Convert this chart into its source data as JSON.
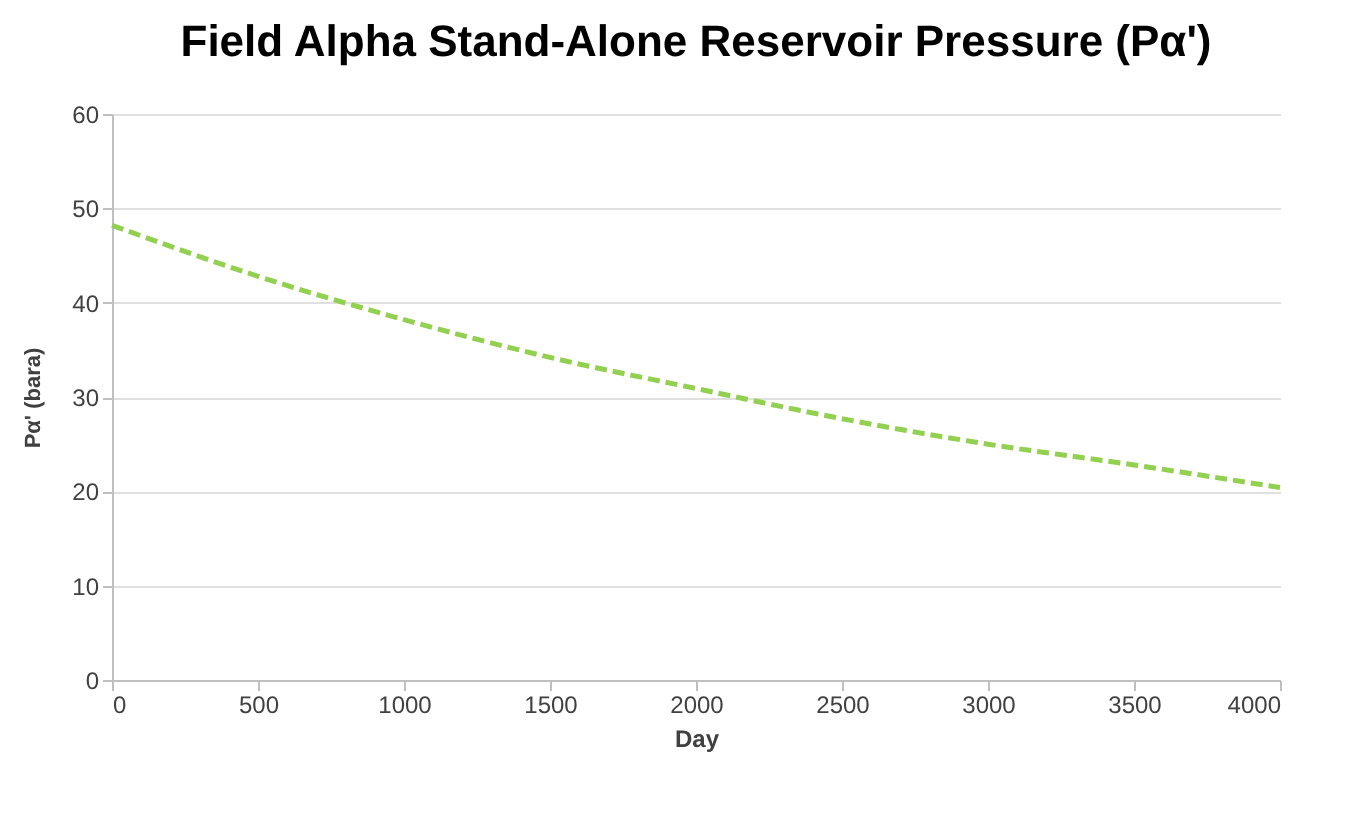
{
  "chart_data": {
    "type": "line",
    "title": "Field Alpha Stand-Alone Reservoir Pressure (Pα')",
    "xlabel": "Day",
    "ylabel": "Pα' (bara)",
    "x": [
      0,
      500,
      1000,
      1500,
      2000,
      2500,
      3000,
      3500,
      4000
    ],
    "series": [
      {
        "color": "#92d050",
        "values": [
          48.2,
          42.8,
          38.2,
          34.2,
          30.9,
          27.7,
          25.0,
          22.8,
          20.4
        ]
      }
    ],
    "xlim": [
      0,
      4000
    ],
    "xticks": [
      0,
      500,
      1000,
      1500,
      2000,
      2500,
      3000,
      3500,
      4000
    ],
    "ylim": [
      0,
      60
    ],
    "yticks": [
      0,
      10,
      20,
      30,
      40,
      50,
      60
    ],
    "grid": "y",
    "line_style": "dashed"
  }
}
